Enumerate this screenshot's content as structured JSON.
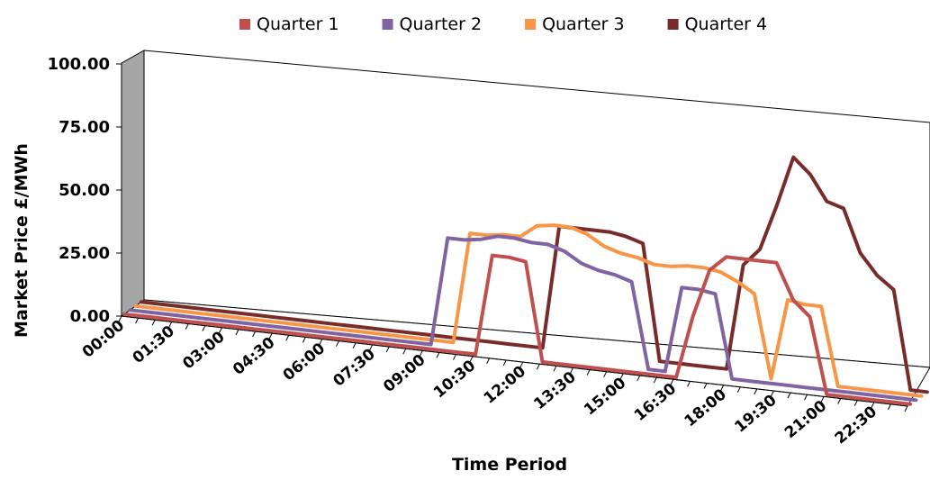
{
  "chart_data": {
    "type": "line",
    "title": "",
    "xlabel": "Time Period",
    "ylabel": "Market Price  £/MWh",
    "ylim": [
      0,
      100
    ],
    "y_ticks": [
      "0.00",
      "25.00",
      "50.00",
      "75.00",
      "100.00"
    ],
    "x_tick_labels": [
      "00:00",
      "01:30",
      "03:00",
      "04:30",
      "06:00",
      "07:30",
      "09:00",
      "10:30",
      "12:00",
      "13:30",
      "15:00",
      "16:30",
      "18:00",
      "19:30",
      "21:00",
      "22:30"
    ],
    "x": [
      "00:00",
      "00:30",
      "01:00",
      "01:30",
      "02:00",
      "02:30",
      "03:00",
      "03:30",
      "04:00",
      "04:30",
      "05:00",
      "05:30",
      "06:00",
      "06:30",
      "07:00",
      "07:30",
      "08:00",
      "08:30",
      "09:00",
      "09:30",
      "10:00",
      "10:30",
      "11:00",
      "11:30",
      "12:00",
      "12:30",
      "13:00",
      "13:30",
      "14:00",
      "14:30",
      "15:00",
      "15:30",
      "16:00",
      "16:30",
      "17:00",
      "17:30",
      "18:00",
      "18:30",
      "19:00",
      "19:30",
      "20:00",
      "20:30",
      "21:00",
      "21:30",
      "22:00",
      "22:30",
      "23:00",
      "23:30"
    ],
    "grid": false,
    "legend_position": "top",
    "view": "3d",
    "series": [
      {
        "name": "Quarter 1",
        "color": "#C0504D",
        "values": [
          0,
          0,
          0,
          0,
          0,
          0,
          0,
          0,
          0,
          0,
          0,
          0,
          0,
          0,
          0,
          0,
          0,
          0,
          0,
          0,
          0,
          0,
          40,
          40,
          39,
          0,
          0,
          0,
          0,
          0,
          0,
          0,
          0,
          0,
          25,
          44,
          50,
          50,
          50,
          50,
          36,
          30,
          0,
          0,
          0,
          0,
          0,
          0
        ]
      },
      {
        "name": "Quarter 2",
        "color": "#8064A2",
        "values": [
          0,
          0,
          0,
          0,
          0,
          0,
          0,
          0,
          0,
          0,
          0,
          0,
          0,
          0,
          0,
          0,
          0,
          0,
          0,
          43,
          43,
          44,
          46,
          46,
          45,
          45,
          43,
          39,
          37,
          36,
          34,
          0,
          0,
          34,
          34,
          33,
          0,
          0,
          0,
          0,
          0,
          0,
          0,
          0,
          0,
          0,
          0,
          0
        ]
      },
      {
        "name": "Quarter 3",
        "color": "#F79646",
        "values": [
          0,
          0,
          0,
          0,
          0,
          0,
          0,
          0,
          0,
          0,
          0,
          0,
          0,
          0,
          0,
          0,
          0,
          0,
          0,
          0,
          44,
          44,
          45,
          45,
          50,
          51,
          51,
          49,
          45,
          43,
          42,
          40,
          40,
          41,
          41,
          40,
          37,
          33,
          0,
          32,
          31,
          31,
          0,
          0,
          0,
          0,
          0,
          0
        ]
      },
      {
        "name": "Quarter 4",
        "color": "#772C2A",
        "values": [
          0,
          0,
          0,
          0,
          0,
          0,
          0,
          0,
          0,
          0,
          0,
          0,
          0,
          0,
          0,
          0,
          0,
          0,
          0,
          0,
          0,
          0,
          0,
          0,
          0,
          49,
          49,
          49,
          49,
          48,
          46,
          0,
          0,
          0,
          0,
          0,
          42,
          49,
          67,
          87,
          81,
          71,
          69,
          52,
          44,
          39,
          0,
          0
        ]
      }
    ]
  }
}
